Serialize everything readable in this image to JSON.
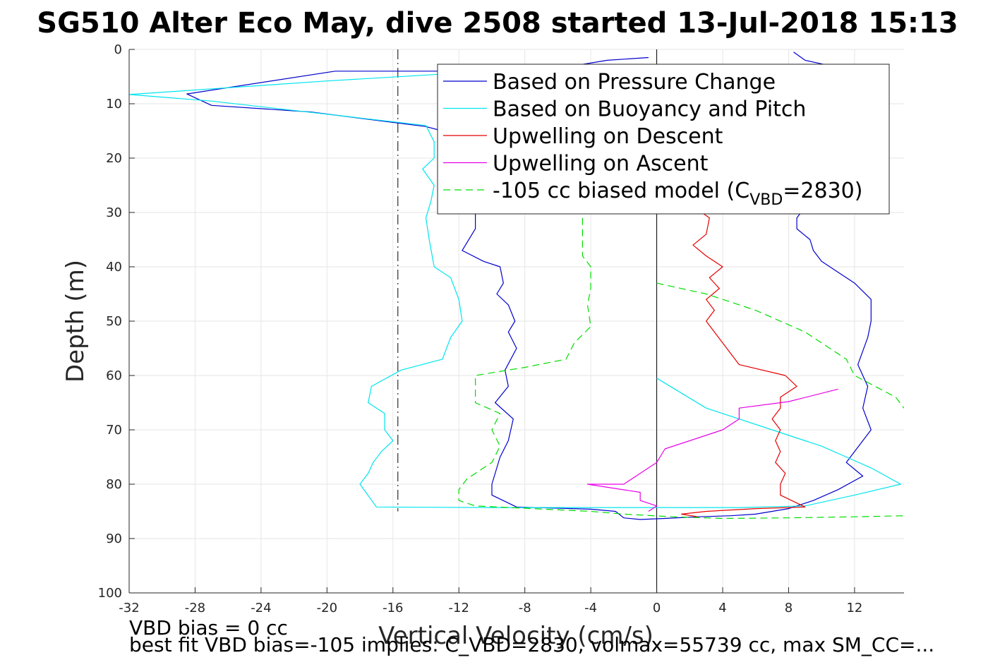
{
  "chart_data": {
    "type": "line",
    "title": "SG510 Alter Eco May, dive 2508 started 13-Jul-2018 15:13",
    "xlabel": "Vertical Velocity (cm/s)",
    "ylabel": "Depth (m)",
    "xlim": [
      -32,
      15
    ],
    "ylim": [
      0,
      100
    ],
    "y_reversed": true,
    "grid": true,
    "xticks": [
      -32,
      -28,
      -24,
      -20,
      -16,
      -12,
      -8,
      -4,
      0,
      4,
      8,
      12
    ],
    "yticks": [
      0,
      10,
      20,
      30,
      40,
      50,
      60,
      70,
      80,
      90,
      100
    ],
    "legend_position": "top-right",
    "legend": [
      {
        "label": "Based on Pressure Change",
        "color": "#0000cc"
      },
      {
        "label": "Based on Buoyancy and Pitch",
        "color": "#00e5ee"
      },
      {
        "label": "Upwelling on Descent",
        "color": "#e60000"
      },
      {
        "label": "Upwelling on Ascent",
        "color": "#e600e6"
      },
      {
        "label_main": "-105 cc biased model (C",
        "label_sub": "VBD",
        "label_end": "=2830)",
        "color": "#00dd00",
        "dashed": true
      }
    ],
    "reference_lines": [
      {
        "x": -15.7,
        "color": "#000000",
        "style": "dashdot"
      },
      {
        "x": 0,
        "color": "#000000",
        "style": "solid"
      }
    ],
    "series": [
      {
        "color": "#0000cc",
        "points": [
          [
            -0.5,
            1.5
          ],
          [
            -3,
            2
          ],
          [
            -5,
            3
          ],
          [
            -12,
            4
          ],
          [
            -19.5,
            4
          ],
          [
            -28.5,
            8.2
          ],
          [
            -27,
            10.3
          ],
          [
            -21,
            11.5
          ],
          [
            -14,
            14.2
          ],
          [
            -13,
            15
          ],
          [
            -11,
            18
          ],
          [
            -11.5,
            22
          ],
          [
            -11,
            26
          ],
          [
            -11,
            30
          ],
          [
            -11,
            33
          ],
          [
            -11.8,
            37
          ],
          [
            -10.5,
            39
          ],
          [
            -9.5,
            40
          ],
          [
            -9.3,
            43
          ],
          [
            -9.7,
            45
          ],
          [
            -9,
            47
          ],
          [
            -8.6,
            50
          ],
          [
            -9,
            52
          ],
          [
            -8.5,
            55
          ],
          [
            -9.2,
            59
          ],
          [
            -9,
            62
          ],
          [
            -9.8,
            65
          ],
          [
            -8.7,
            68
          ],
          [
            -9,
            72
          ],
          [
            -9.5,
            75
          ],
          [
            -10,
            80
          ],
          [
            -10,
            82
          ],
          [
            -8.5,
            84.2
          ],
          [
            -4,
            84.6
          ],
          [
            -2.5,
            85
          ],
          [
            -2,
            86.2
          ],
          [
            -1,
            86.5
          ],
          [
            0.5,
            86.3
          ],
          [
            2.5,
            86
          ],
          [
            4.5,
            85.8
          ]
        ]
      },
      {
        "color": "#0000cc",
        "points": [
          [
            4.5,
            85.8
          ],
          [
            6,
            85.5
          ],
          [
            8,
            84.5
          ],
          [
            9.5,
            83
          ],
          [
            11,
            81
          ],
          [
            12.5,
            78.5
          ],
          [
            11.5,
            76
          ],
          [
            12,
            74
          ],
          [
            13,
            70
          ],
          [
            12.5,
            66
          ],
          [
            12.8,
            62
          ],
          [
            12.5,
            60
          ],
          [
            12.2,
            58
          ],
          [
            12.8,
            53
          ],
          [
            13,
            50
          ],
          [
            13,
            46
          ],
          [
            12,
            43
          ],
          [
            11,
            41
          ],
          [
            10,
            39
          ],
          [
            9.5,
            37
          ],
          [
            9.3,
            35
          ],
          [
            8.5,
            33
          ],
          [
            8.5,
            31
          ],
          [
            9,
            29
          ],
          [
            9.5,
            25
          ],
          [
            10,
            20
          ],
          [
            10,
            15
          ],
          [
            10.5,
            10
          ],
          [
            11,
            5
          ],
          [
            10.5,
            3
          ],
          [
            9,
            2
          ],
          [
            8.3,
            0.5
          ]
        ]
      },
      {
        "color": "#00e5ee",
        "points": [
          [
            -0.7,
            4
          ],
          [
            -10,
            4
          ],
          [
            -20,
            5.8
          ],
          [
            -32,
            8.3
          ],
          [
            -27,
            9.5
          ],
          [
            -14,
            14
          ],
          [
            -13.5,
            17
          ],
          [
            -13.5,
            20
          ],
          [
            -14.2,
            22
          ],
          [
            -13.5,
            25
          ],
          [
            -13.7,
            28
          ],
          [
            -14,
            31
          ],
          [
            -13.8,
            35
          ],
          [
            -13.5,
            40
          ],
          [
            -12.5,
            42
          ],
          [
            -12,
            46
          ],
          [
            -11.8,
            50
          ],
          [
            -12.5,
            53
          ],
          [
            -13,
            57
          ],
          [
            -15.5,
            59
          ],
          [
            -17.3,
            62
          ],
          [
            -17.5,
            65
          ],
          [
            -16.5,
            67
          ],
          [
            -16.5,
            70
          ],
          [
            -16,
            72
          ],
          [
            -16.7,
            74
          ],
          [
            -17.2,
            76
          ],
          [
            -17.5,
            78
          ],
          [
            -18,
            80
          ],
          [
            -17,
            84.2
          ],
          [
            -10,
            84.3
          ],
          [
            0,
            84.3
          ],
          [
            5,
            84.3
          ],
          [
            9,
            84
          ],
          [
            12,
            82
          ],
          [
            14.8,
            80
          ],
          [
            13,
            77
          ],
          [
            11.5,
            75
          ],
          [
            10,
            73
          ],
          [
            7,
            70
          ],
          [
            3,
            66
          ],
          [
            0,
            60.5
          ]
        ]
      },
      {
        "color": "#e60000",
        "points": [
          [
            2.5,
            86
          ],
          [
            1.5,
            85.5
          ],
          [
            3,
            85
          ],
          [
            6,
            84.5
          ],
          [
            9,
            84.2
          ],
          [
            7.5,
            82
          ],
          [
            7.5,
            80
          ],
          [
            7.8,
            78
          ],
          [
            7.2,
            76
          ],
          [
            7.5,
            74
          ],
          [
            7.2,
            72
          ],
          [
            7.5,
            70
          ],
          [
            7,
            68
          ],
          [
            7.5,
            66
          ],
          [
            7.5,
            64
          ],
          [
            8.5,
            62
          ],
          [
            7.8,
            60
          ],
          [
            5,
            58
          ],
          [
            4.5,
            56
          ],
          [
            4,
            54
          ],
          [
            3.5,
            52
          ],
          [
            3,
            50
          ],
          [
            3.5,
            48
          ],
          [
            3,
            46
          ],
          [
            3.8,
            44
          ],
          [
            3.2,
            42
          ],
          [
            4,
            40
          ],
          [
            3,
            38
          ],
          [
            2.2,
            36
          ],
          [
            3,
            34
          ],
          [
            3.2,
            31
          ],
          [
            2.5,
            29.5
          ]
        ]
      },
      {
        "color": "#e600e6",
        "points": [
          [
            11,
            62.5
          ],
          [
            8,
            64.8
          ],
          [
            5,
            66
          ],
          [
            5,
            68
          ],
          [
            4,
            70
          ],
          [
            0.5,
            73.5
          ],
          [
            0,
            76
          ],
          [
            -1,
            78
          ],
          [
            -2,
            80
          ],
          [
            -4.2,
            80
          ],
          [
            -1,
            81.5
          ],
          [
            -1,
            83
          ],
          [
            0,
            84
          ],
          [
            -0.5,
            85
          ]
        ]
      },
      {
        "color": "#00dd00",
        "dashed": true,
        "points": [
          [
            -4.5,
            31
          ],
          [
            -4.5,
            35
          ],
          [
            -4.5,
            38
          ],
          [
            -4,
            40
          ],
          [
            -4,
            44
          ],
          [
            -4.2,
            47
          ],
          [
            -4,
            51
          ],
          [
            -5,
            54
          ],
          [
            -5.5,
            57
          ],
          [
            -8,
            58.5
          ],
          [
            -11,
            60
          ],
          [
            -11,
            62
          ],
          [
            -11,
            65
          ],
          [
            -9.5,
            67
          ],
          [
            -10,
            70
          ],
          [
            -9.5,
            73
          ],
          [
            -10,
            76
          ],
          [
            -11.5,
            79
          ],
          [
            -12,
            81
          ],
          [
            -12,
            83
          ],
          [
            -11,
            84
          ],
          [
            -4,
            85
          ],
          [
            -2,
            85.5
          ],
          [
            1,
            86
          ],
          [
            4,
            86.3
          ],
          [
            8,
            86.2
          ],
          [
            12,
            86
          ],
          [
            15,
            85.8
          ]
        ]
      },
      {
        "color": "#00dd00",
        "dashed": true,
        "points": [
          [
            0,
            43
          ],
          [
            3,
            45
          ],
          [
            6,
            48
          ],
          [
            9,
            52
          ],
          [
            11.5,
            57
          ],
          [
            12,
            60
          ],
          [
            14.5,
            64
          ],
          [
            15,
            66
          ]
        ]
      }
    ]
  },
  "footnotes": {
    "line1": "VBD bias = 0 cc",
    "line2": "best fit VBD bias=-105 implies: C_VBD=2830, volmax=55739 cc, max SM_CC=..."
  }
}
